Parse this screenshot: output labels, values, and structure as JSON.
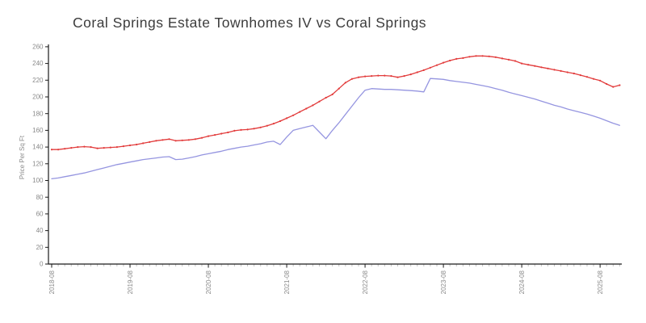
{
  "chart_data": {
    "type": "line",
    "title": "Coral Springs Estate Townhomes IV vs Coral Springs",
    "xlabel": "",
    "ylabel": "Price Per Sq Ft",
    "ylim": [
      0,
      260
    ],
    "ytick_step": 20,
    "grid": false,
    "legend_position": "none",
    "x_major_tick_labels": [
      "2018-08",
      "2019-08",
      "2020-08",
      "2021-08",
      "2022-08",
      "2023-08",
      "2024-08",
      "2025-08"
    ],
    "x": [
      "2018-08",
      "2018-09",
      "2018-10",
      "2018-11",
      "2018-12",
      "2019-01",
      "2019-02",
      "2019-03",
      "2019-04",
      "2019-05",
      "2019-06",
      "2019-07",
      "2019-08",
      "2019-09",
      "2019-10",
      "2019-11",
      "2019-12",
      "2020-01",
      "2020-02",
      "2020-03",
      "2020-04",
      "2020-05",
      "2020-06",
      "2020-07",
      "2020-08",
      "2020-09",
      "2020-10",
      "2020-11",
      "2020-12",
      "2021-01",
      "2021-02",
      "2021-03",
      "2021-04",
      "2021-05",
      "2021-06",
      "2021-07",
      "2021-08",
      "2021-09",
      "2021-10",
      "2021-11",
      "2021-12",
      "2022-01",
      "2022-02",
      "2022-03",
      "2022-04",
      "2022-05",
      "2022-06",
      "2022-07",
      "2022-08",
      "2022-09",
      "2022-10",
      "2022-11",
      "2022-12",
      "2023-01",
      "2023-02",
      "2023-03",
      "2023-04",
      "2023-05",
      "2023-06",
      "2023-07",
      "2023-08",
      "2023-09",
      "2023-10",
      "2023-11",
      "2023-12",
      "2024-01",
      "2024-02",
      "2024-03",
      "2024-04",
      "2024-05",
      "2024-06",
      "2024-07",
      "2024-08",
      "2024-09",
      "2024-10",
      "2024-11",
      "2024-12",
      "2025-01",
      "2025-02",
      "2025-03",
      "2025-04",
      "2025-05",
      "2025-06",
      "2025-07",
      "2025-08",
      "2025-09",
      "2025-10",
      "2025-11"
    ],
    "series": [
      {
        "name": "Coral Springs Estate Townhomes IV",
        "color": "#e23b3b",
        "markers": true,
        "values": [
          137,
          137,
          138,
          139,
          140,
          140.5,
          140,
          138.5,
          139,
          139.5,
          140,
          141,
          142,
          143,
          144.5,
          146,
          147.5,
          148.5,
          149.5,
          147.5,
          148,
          148.5,
          149.5,
          151,
          153,
          154.5,
          156,
          157.5,
          159.5,
          160.5,
          161,
          162,
          163.5,
          165.5,
          168,
          171,
          174.5,
          178,
          182,
          186,
          190,
          194.5,
          199,
          203,
          210,
          217,
          221.5,
          223.5,
          224.5,
          225,
          225.5,
          225.5,
          225,
          223.5,
          225,
          227,
          229.5,
          232,
          235,
          238,
          241,
          243.5,
          245.5,
          246.5,
          248,
          249,
          249,
          248.5,
          247.5,
          246,
          244.5,
          243,
          240,
          238.5,
          237,
          235.5,
          234,
          232.5,
          231,
          229.5,
          228,
          226,
          224,
          221.5,
          219.5,
          215.5,
          212,
          214
        ]
      },
      {
        "name": "Coral Springs",
        "color": "#9595e0",
        "markers": false,
        "values": [
          102,
          103,
          104.5,
          106,
          107.5,
          109,
          111,
          113,
          115,
          117,
          119,
          120.5,
          122,
          123.5,
          125,
          126,
          127,
          128,
          128.5,
          125,
          125.5,
          127,
          128.5,
          130.5,
          132,
          133.5,
          135,
          137,
          138.5,
          140,
          141,
          142.5,
          144,
          146,
          147,
          143,
          152,
          160,
          162,
          164,
          166,
          158,
          150,
          160,
          169,
          179,
          189,
          199,
          208,
          210,
          209.5,
          209,
          209,
          208.5,
          208,
          207.5,
          207,
          206,
          222,
          221.5,
          221,
          219.5,
          218.5,
          217.5,
          216.5,
          215,
          213.5,
          212,
          210,
          208,
          205.5,
          203.5,
          201.5,
          199.5,
          197.5,
          195,
          192.5,
          190,
          188,
          185.5,
          183.5,
          181.5,
          179.5,
          177,
          174.5,
          171.5,
          168.5,
          166
        ]
      }
    ],
    "colors": {
      "axis": "#1a1a1a",
      "tick_label": "#8a8a8a",
      "minor_tick": "#c2c2c2",
      "title": "#3c3c3c"
    }
  }
}
